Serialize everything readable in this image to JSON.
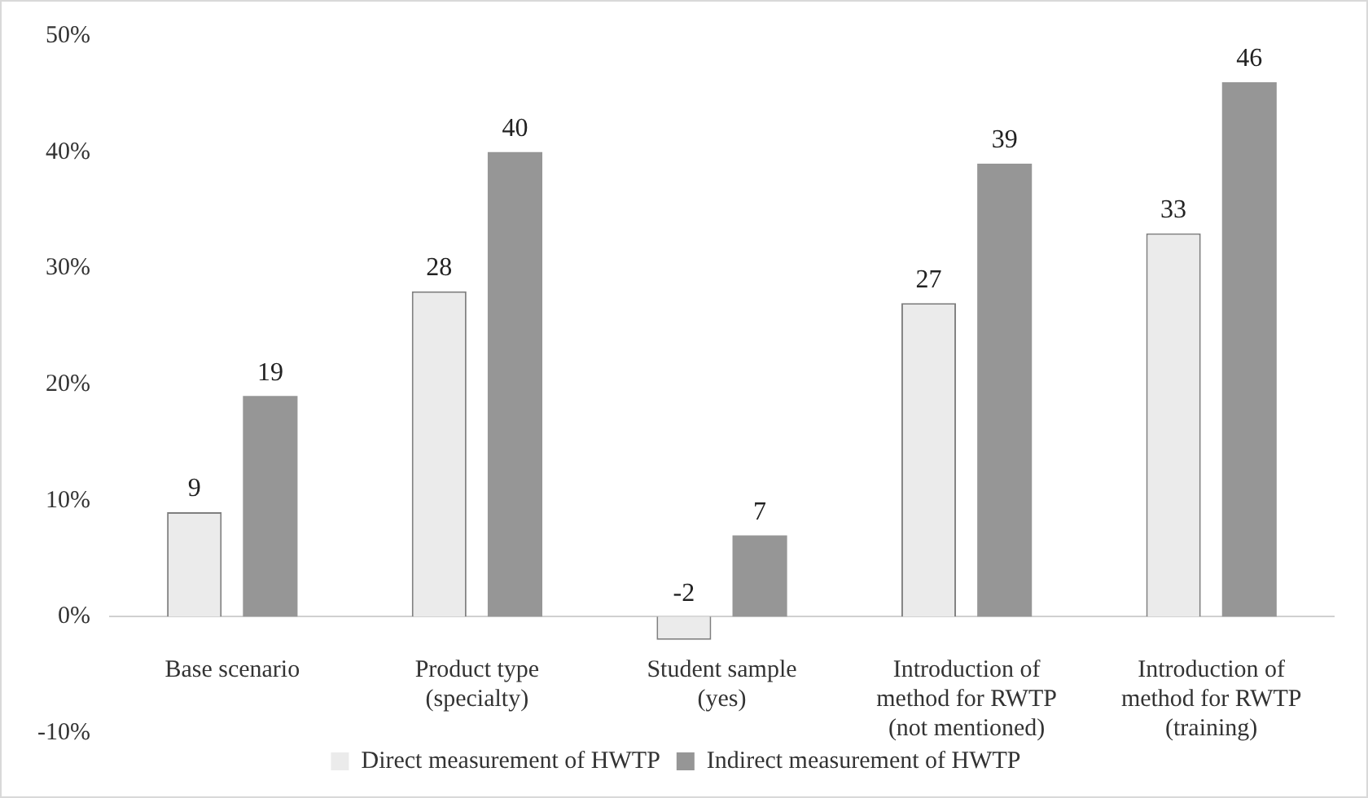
{
  "chart_data": {
    "type": "bar",
    "categories": [
      "Base scenario",
      "Product type (specialty)",
      "Student sample (yes)",
      "Introduction of method for RWTP (not mentioned)",
      "Introduction of method for RWTP (training)"
    ],
    "series": [
      {
        "name": "Direct measurement of HWTP",
        "color": "#ebebeb",
        "values": [
          9,
          28,
          -2,
          27,
          33
        ]
      },
      {
        "name": "Indirect measurement of HWTP",
        "color": "#969696",
        "values": [
          19,
          40,
          7,
          39,
          46
        ]
      }
    ],
    "ylim": [
      -10,
      50
    ],
    "yticks": [
      {
        "value": -10,
        "label": "-10%"
      },
      {
        "value": 0,
        "label": "0%"
      },
      {
        "value": 10,
        "label": "10%"
      },
      {
        "value": 20,
        "label": "20%"
      },
      {
        "value": 30,
        "label": "30%"
      },
      {
        "value": 40,
        "label": "40%"
      },
      {
        "value": 50,
        "label": "50%"
      }
    ],
    "grid": false,
    "legend": "bottom",
    "data_labels": true
  }
}
